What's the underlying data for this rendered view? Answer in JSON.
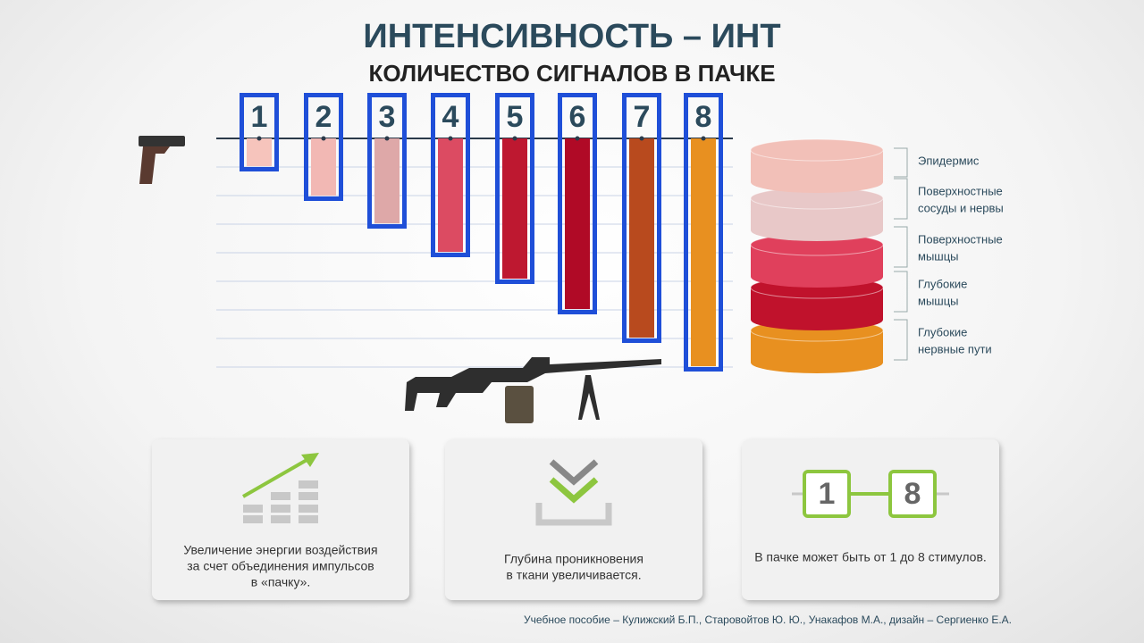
{
  "header": {
    "title": "ИНТЕНСИВНОСТЬ – ИНТ",
    "subtitle": "КОЛИЧЕСТВО СИГНАЛОВ В ПАЧКЕ"
  },
  "bars": [
    "1",
    "2",
    "3",
    "4",
    "5",
    "6",
    "7",
    "8"
  ],
  "layers": [
    [
      "Эпидермис"
    ],
    [
      "Поверхностные",
      "сосуды и нервы"
    ],
    [
      "Поверхностные",
      "мышцы"
    ],
    [
      "Глубокие",
      "мышцы"
    ],
    [
      "Глубокие",
      "нервные пути"
    ]
  ],
  "cards": [
    [
      "Увеличение энергии воздействия",
      "за счет объединения импульсов",
      "в «пачку»."
    ],
    [
      "Глубина проникновения",
      "в ткани увеличивается."
    ],
    [
      "В пачке может быть от 1 до 8 стимулов."
    ]
  ],
  "range": {
    "from": "1",
    "to": "8"
  },
  "credit": "Учебное пособие – Кулижский Б.П., Старовойтов Ю. Ю., Унакафов М.А.,  дизайн – Сергиенко Е.А."
}
